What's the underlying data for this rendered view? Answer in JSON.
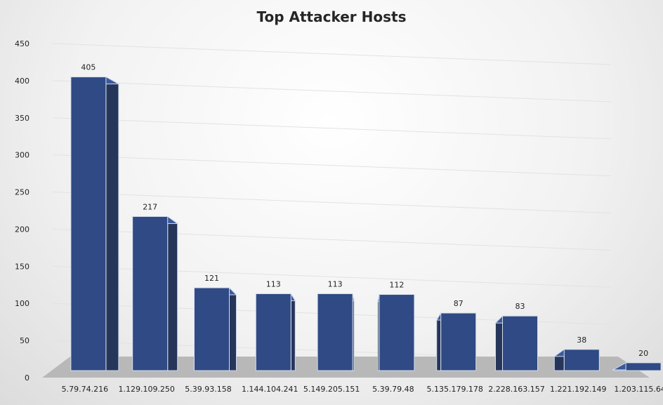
{
  "chart_data": {
    "type": "bar",
    "title": "Top Attacker Hosts",
    "categories": [
      "5.79.74.216",
      "1.129.109.250",
      "5.39.93.158",
      "1.144.104.241",
      "5.149.205.151",
      "5.39.79.48",
      "5.135.179.178",
      "2.228.163.157",
      "1.221.192.149",
      "1.203.115.64"
    ],
    "values": [
      405,
      217,
      121,
      113,
      113,
      112,
      87,
      83,
      38,
      20
    ],
    "xlabel": "",
    "ylabel": "",
    "ylim": [
      0,
      450
    ],
    "yticks": [
      0,
      50,
      100,
      150,
      200,
      250,
      300,
      350,
      400,
      450
    ],
    "grid": true,
    "legend": "none",
    "bar_color": "#2f4a84",
    "bar_side_color": "#26365a",
    "floor_color": "#b8b8b8"
  }
}
